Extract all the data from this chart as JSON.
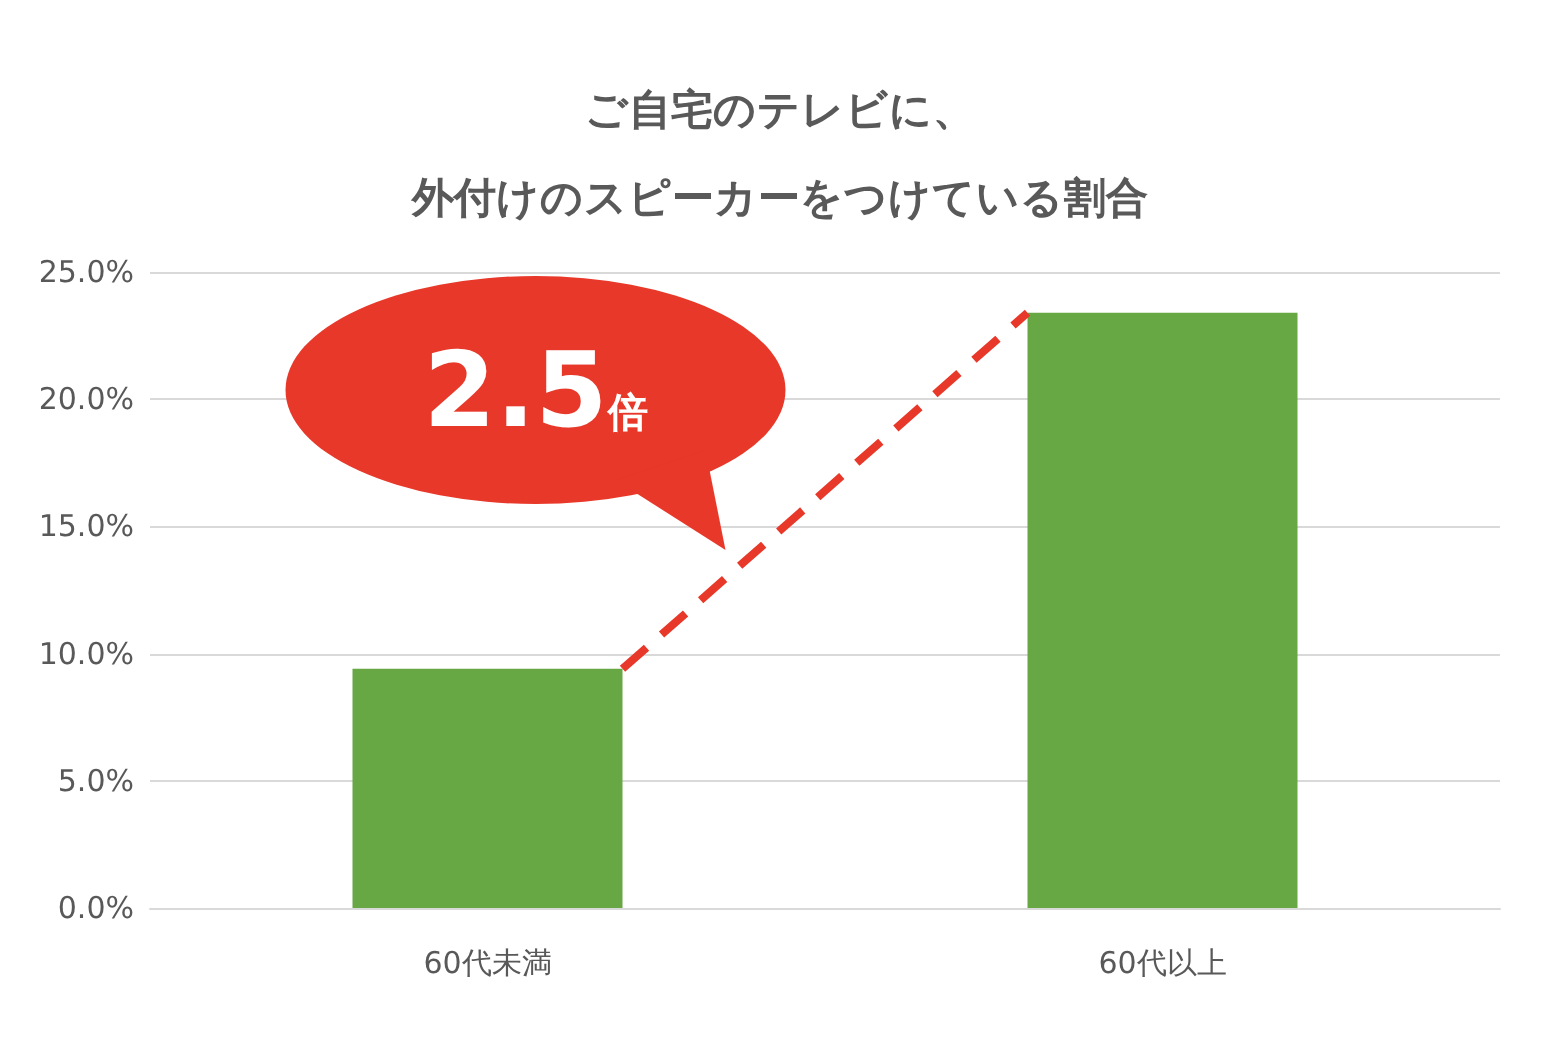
{
  "chart_data": {
    "type": "bar",
    "title": "ご自宅のテレビに、外付けのスピーカーをつけている割合",
    "categories": [
      "60代未満",
      "60代以上"
    ],
    "values": [
      9.4,
      23.4
    ],
    "color": "#67a844",
    "ylim": [
      0,
      25
    ],
    "yticks": [
      {
        "value": 0,
        "label": "0.0%"
      },
      {
        "value": 5,
        "label": "5.0%"
      },
      {
        "value": 10,
        "label": "10.0%"
      },
      {
        "value": 15,
        "label": "15.0%"
      },
      {
        "value": 20,
        "label": "20.0%"
      },
      {
        "value": 25,
        "label": "25.0%"
      }
    ],
    "grid": "y",
    "annotations": [
      "2.5倍"
    ]
  }
}
